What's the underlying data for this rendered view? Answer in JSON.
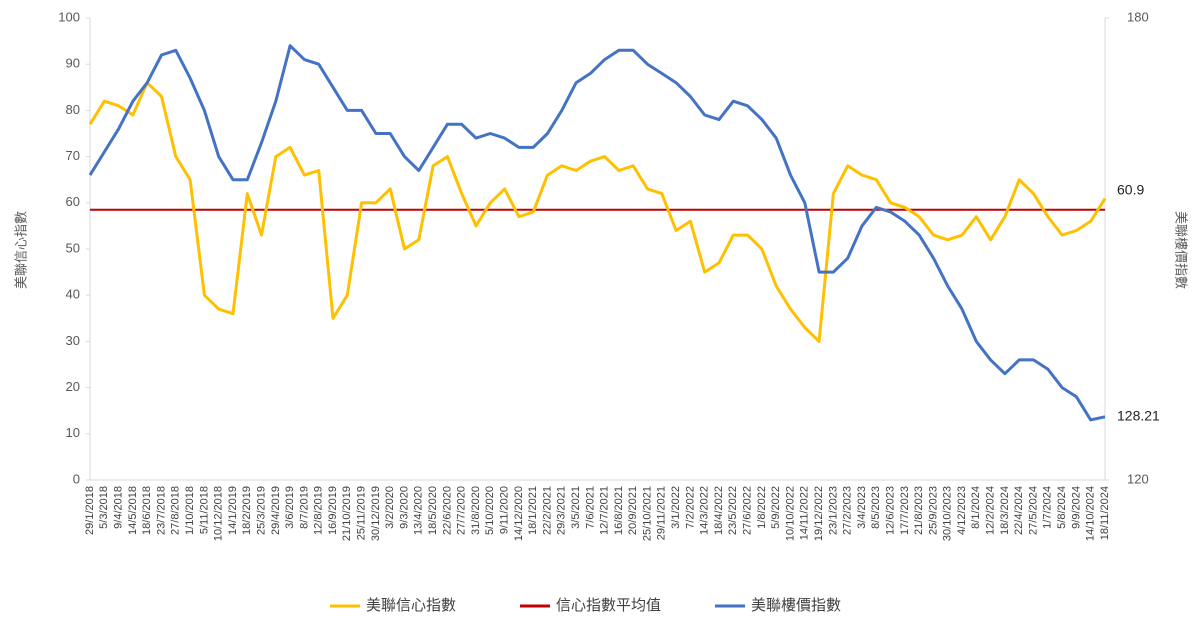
{
  "chart_data": {
    "type": "line",
    "categories": [
      "29/1/2018",
      "5/3/2018",
      "9/4/2018",
      "14/5/2018",
      "18/6/2018",
      "23/7/2018",
      "27/8/2018",
      "1/10/2018",
      "5/11/2018",
      "10/12/2018",
      "14/1/2019",
      "18/2/2019",
      "25/3/2019",
      "29/4/2019",
      "3/6/2019",
      "8/7/2019",
      "12/8/2019",
      "16/9/2019",
      "21/10/2019",
      "25/11/2019",
      "30/12/2019",
      "3/2/2020",
      "9/3/2020",
      "13/4/2020",
      "18/5/2020",
      "22/6/2020",
      "27/7/2020",
      "31/8/2020",
      "5/10/2020",
      "9/11/2020",
      "14/12/2020",
      "18/1/2021",
      "22/2/2021",
      "29/3/2021",
      "3/5/2021",
      "7/6/2021",
      "12/7/2021",
      "16/8/2021",
      "20/9/2021",
      "25/10/2021",
      "29/11/2021",
      "3/1/2022",
      "7/2/2022",
      "14/3/2022",
      "18/4/2022",
      "23/5/2022",
      "27/6/2022",
      "1/8/2022",
      "5/9/2022",
      "10/10/2022",
      "14/11/2022",
      "19/12/2022",
      "23/1/2023",
      "27/2/2023",
      "3/4/2023",
      "8/5/2023",
      "12/6/2023",
      "17/7/2023",
      "21/8/2023",
      "25/9/2023",
      "30/10/2023",
      "4/12/2023",
      "8/1/2024",
      "12/2/2024",
      "18/3/2024",
      "22/4/2024",
      "27/5/2024",
      "1/7/2024",
      "5/8/2024",
      "9/9/2024",
      "14/10/2024",
      "18/11/2024"
    ],
    "series": [
      {
        "name": "美聯信心指數",
        "color": "#ffc000",
        "axis": "y",
        "values": [
          77,
          82,
          81,
          79,
          86,
          83,
          70,
          65,
          40,
          37,
          36,
          62,
          53,
          70,
          72,
          66,
          67,
          35,
          40,
          60,
          60,
          63,
          50,
          52,
          68,
          70,
          62,
          55,
          60,
          63,
          57,
          58,
          66,
          68,
          67,
          69,
          70,
          67,
          68,
          63,
          62,
          54,
          56,
          45,
          47,
          53,
          53,
          50,
          42,
          37,
          33,
          30,
          62,
          68,
          66,
          65,
          60,
          59,
          57,
          53,
          52,
          53,
          57,
          52,
          57,
          65,
          62,
          57,
          53,
          54,
          56,
          60.9
        ]
      },
      {
        "name": "美聯樓價指數",
        "color": "#4472c4",
        "axis": "y2",
        "values": [
          159.6,
          162.6,
          165.6,
          169.2,
          171.6,
          175.2,
          175.8,
          172.2,
          168,
          162,
          159,
          159,
          163.8,
          169.2,
          176.4,
          174.6,
          174,
          171,
          168,
          168,
          165,
          165,
          162,
          160.2,
          163.2,
          166.2,
          166.2,
          164.4,
          165,
          164.4,
          163.2,
          163.2,
          165,
          168,
          171.6,
          172.8,
          174.6,
          175.8,
          175.8,
          174,
          172.8,
          171.6,
          169.8,
          167.4,
          166.8,
          169.2,
          168.6,
          166.8,
          164.4,
          159.6,
          156,
          147,
          147,
          148.8,
          153,
          155.4,
          154.8,
          153.6,
          151.8,
          148.8,
          145.2,
          142.2,
          138,
          135.6,
          133.8,
          135.6,
          135.6,
          134.4,
          132,
          130.8,
          127.8,
          128.21
        ]
      }
    ],
    "reference_lines": [
      {
        "name": "信心指數平均值",
        "value": 58.5,
        "color": "#c00000"
      }
    ],
    "ylabel": "美聯信心指數",
    "y2label": "美聯樓價指數",
    "ylim": [
      0,
      100
    ],
    "yticks": [
      0,
      10,
      20,
      30,
      40,
      50,
      60,
      70,
      80,
      90,
      100
    ],
    "y2lim": [
      120,
      180
    ],
    "y2ticks": [
      120,
      180
    ],
    "grid": false,
    "legend": "bottom"
  }
}
